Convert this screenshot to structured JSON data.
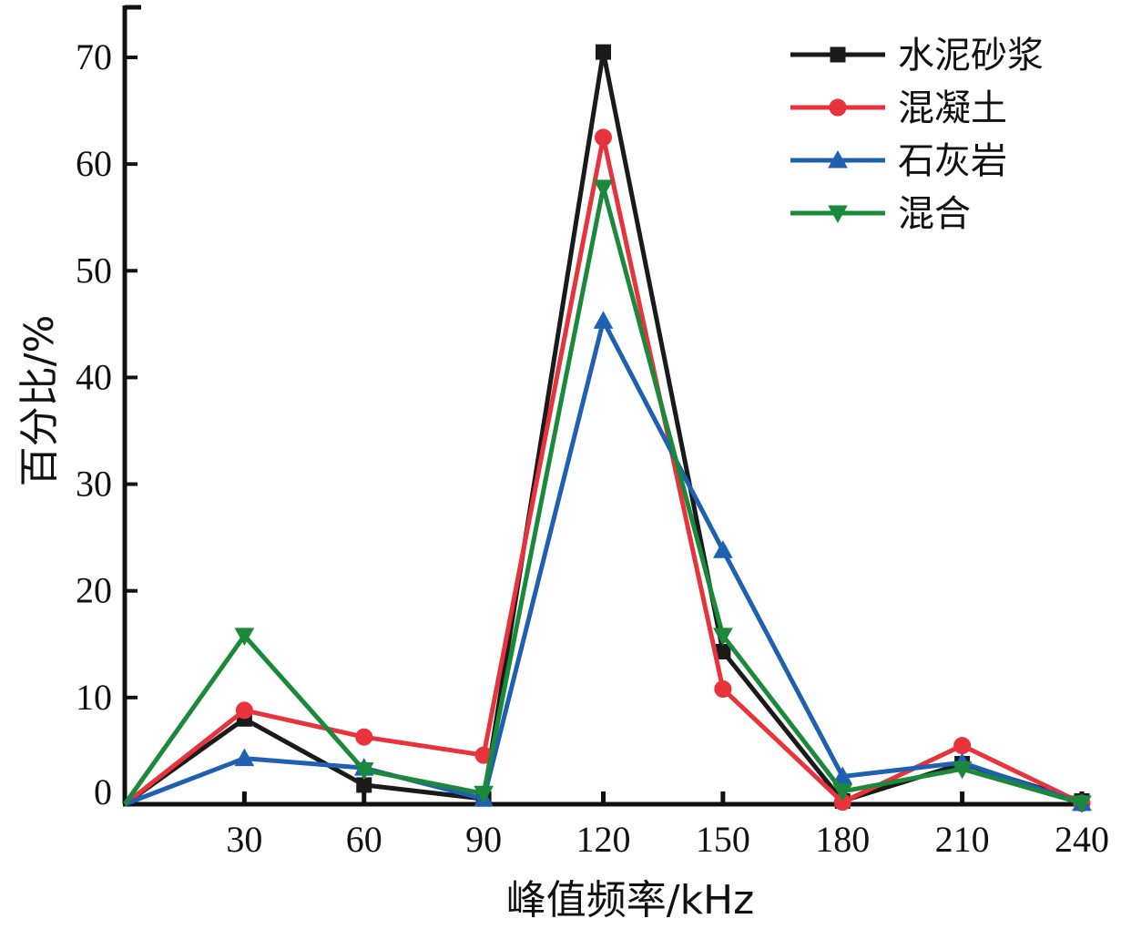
{
  "chart_data": {
    "type": "line",
    "x": [
      0,
      30,
      60,
      90,
      120,
      150,
      180,
      210,
      240
    ],
    "x_tick_labels": [
      "30",
      "60",
      "90",
      "120",
      "150",
      "180",
      "210",
      "240"
    ],
    "y_tick_labels": [
      "0",
      "10",
      "20",
      "30",
      "40",
      "50",
      "60",
      "70"
    ],
    "xlim": [
      0,
      240
    ],
    "ylim": [
      0,
      75
    ],
    "xlabel": "峰值频率/kHz",
    "ylabel": "百分比/%",
    "grid": false,
    "legend_position": "top-right",
    "series": [
      {
        "name": "水泥砂浆",
        "color": "#1a1a1a",
        "marker": "square",
        "values": [
          0,
          8.0,
          1.8,
          0.5,
          70.5,
          14.3,
          0.3,
          3.8,
          0.3
        ]
      },
      {
        "name": "混凝土",
        "color": "#e8323c",
        "marker": "circle",
        "values": [
          0,
          8.8,
          6.3,
          4.6,
          62.5,
          10.8,
          0.2,
          5.5,
          0.1
        ]
      },
      {
        "name": "石灰岩",
        "color": "#2060b0",
        "marker": "triangle-up",
        "values": [
          0,
          4.3,
          3.4,
          0.5,
          45.3,
          23.8,
          2.6,
          3.9,
          0.1
        ]
      },
      {
        "name": "混合",
        "color": "#1a8a3a",
        "marker": "triangle-down",
        "values": [
          0,
          15.8,
          3.2,
          1.0,
          57.8,
          15.8,
          1.2,
          3.3,
          0.1
        ]
      }
    ]
  }
}
